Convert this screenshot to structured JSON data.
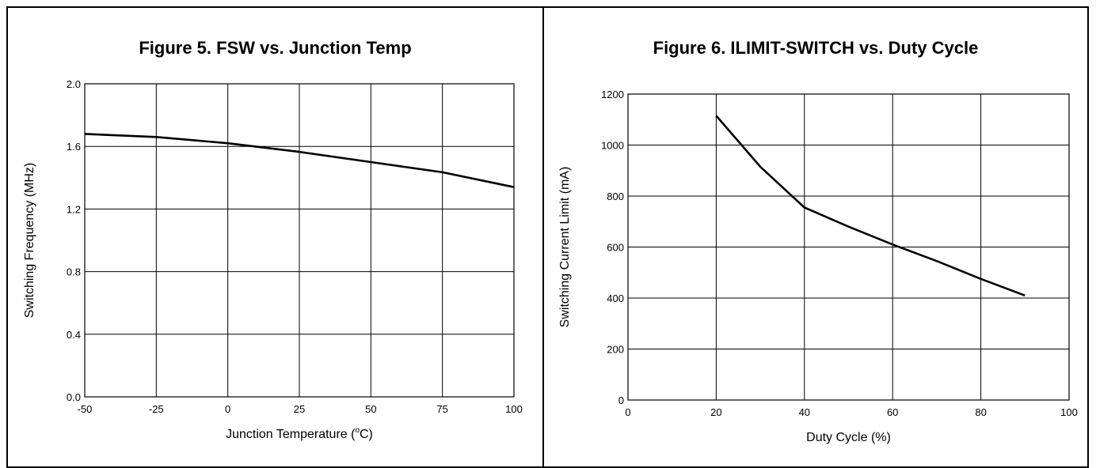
{
  "chart_data": [
    {
      "type": "line",
      "title": "Figure 5. FSW vs. Junction Temp",
      "xlabel": "Junction Temperature (",
      "xlabel_unit_sup": "o",
      "xlabel_unit": "C)",
      "ylabel": "Switching Frequency (MHz)",
      "xlim": [
        -50,
        100
      ],
      "ylim": [
        0.0,
        2.0
      ],
      "xticks": [
        -50,
        -25,
        0,
        25,
        50,
        75,
        100
      ],
      "xtick_labels": [
        "-50",
        "-25",
        "0",
        "25",
        "50",
        "75",
        "100"
      ],
      "yticks": [
        0.0,
        0.4,
        0.8,
        1.2,
        1.6,
        2.0
      ],
      "ytick_labels": [
        "0.0",
        "0.4",
        "0.8",
        "1.2",
        "1.6",
        "2.0"
      ],
      "grid": true,
      "series": [
        {
          "x": [
            -50,
            -25,
            0,
            25,
            50,
            75,
            100
          ],
          "values": [
            1.68,
            1.66,
            1.62,
            1.565,
            1.5,
            1.435,
            1.34
          ]
        }
      ]
    },
    {
      "type": "line",
      "title": "Figure 6. ILIMIT-SWITCH vs. Duty Cycle",
      "xlabel": "Duty Cycle (%)",
      "ylabel": "Switching Current Limit (mA)",
      "xlim": [
        0,
        100
      ],
      "ylim": [
        0,
        1200
      ],
      "xticks": [
        0,
        20,
        40,
        60,
        80,
        100
      ],
      "xtick_labels": [
        "0",
        "20",
        "40",
        "60",
        "80",
        "100"
      ],
      "yticks": [
        0,
        200,
        400,
        600,
        800,
        1000,
        1200
      ],
      "ytick_labels": [
        "0",
        "200",
        "400",
        "600",
        "800",
        "1000",
        "1200"
      ],
      "grid": true,
      "series": [
        {
          "x": [
            20,
            30,
            40,
            50,
            60,
            70,
            80,
            90
          ],
          "values": [
            1115,
            915,
            755,
            680,
            610,
            545,
            475,
            410
          ]
        }
      ]
    }
  ]
}
